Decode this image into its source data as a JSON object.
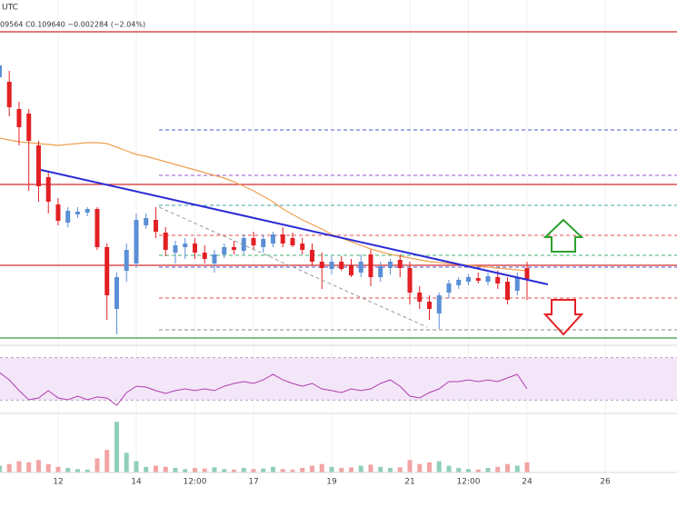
{
  "chart_data": {
    "type": "candlestick",
    "timezone": "UTC",
    "header": "09564 C0.109640 −0.002284 (−2.04%)",
    "up_color": "#5b8fd6",
    "down_color": "#e32024",
    "xlim": [
      -35.7,
      380.1
    ],
    "ylim": [
      0.106,
      0.125
    ],
    "xticks": [
      {
        "value": 0,
        "label": "12"
      },
      {
        "value": 48,
        "label": "14"
      },
      {
        "value": 84,
        "label": "12:00"
      },
      {
        "value": 120,
        "label": "17"
      },
      {
        "value": 168,
        "label": "19"
      },
      {
        "value": 216,
        "label": "21"
      },
      {
        "value": 252,
        "label": "12:00"
      },
      {
        "value": 288,
        "label": "24"
      },
      {
        "value": 336,
        "label": "26"
      }
    ],
    "x": [
      -36,
      -30,
      -24,
      -18,
      -12,
      -6,
      0,
      6,
      12,
      18,
      24,
      30,
      36,
      42,
      48,
      54,
      60,
      66,
      72,
      78,
      84,
      90,
      96,
      102,
      108,
      114,
      120,
      126,
      132,
      138,
      144,
      150,
      156,
      162,
      168,
      174,
      180,
      186,
      192,
      198,
      204,
      210,
      216,
      222,
      228,
      234,
      240,
      246,
      252,
      258,
      264,
      270,
      276,
      282,
      288
    ],
    "open": [
      0.12075,
      0.1205,
      0.119,
      0.11875,
      0.117,
      0.11525,
      0.11375,
      0.11275,
      0.1132,
      0.1133,
      0.1135,
      0.1114,
      0.108,
      0.1101,
      0.1105,
      0.1126,
      0.1129,
      0.1122,
      0.1111,
      0.1114,
      0.1116,
      0.1111,
      0.1105,
      0.111,
      0.1114,
      0.1112,
      0.1119,
      0.1114,
      0.1116,
      0.1121,
      0.1119,
      0.1116,
      0.11125,
      0.1106,
      0.1102,
      0.1106,
      0.1104,
      0.11,
      0.111,
      0.10975,
      0.11025,
      0.1107,
      0.11025,
      0.1089,
      0.1084,
      0.10775,
      0.1089,
      0.1093,
      0.1095,
      0.1097,
      0.1095,
      0.10975,
      0.1095,
      0.109,
      0.11025
    ],
    "high": [
      0.1216,
      0.1211,
      0.1194,
      0.119,
      0.11725,
      0.1156,
      0.1141,
      0.1136,
      0.1136,
      0.1136,
      0.1136,
      0.1116,
      0.11,
      0.1116,
      0.11325,
      0.11325,
      0.1136,
      0.1125,
      0.11175,
      0.1119,
      0.1119,
      0.1115,
      0.11125,
      0.1116,
      0.11175,
      0.1121,
      0.11225,
      0.1121,
      0.11225,
      0.1125,
      0.1122,
      0.1119,
      0.1116,
      0.1111,
      0.1109,
      0.1109,
      0.11075,
      0.111,
      0.11125,
      0.1106,
      0.11075,
      0.111,
      0.1106,
      0.10925,
      0.10875,
      0.1089,
      0.1096,
      0.10975,
      0.1099,
      0.11,
      0.11,
      0.1101,
      0.10975,
      0.11,
      0.1106
    ],
    "low": [
      0.1205,
      0.1186,
      0.117,
      0.1145,
      0.1139,
      0.11325,
      0.1126,
      0.1125,
      0.113,
      0.1131,
      0.11125,
      0.1074,
      0.1066,
      0.1095,
      0.11025,
      0.1124,
      0.1119,
      0.1109,
      0.1105,
      0.11075,
      0.11075,
      0.1105,
      0.11,
      0.1108,
      0.111,
      0.111,
      0.11125,
      0.1111,
      0.1114,
      0.1114,
      0.1114,
      0.111,
      0.1104,
      0.1091,
      0.1099,
      0.1101,
      0.10975,
      0.10975,
      0.10925,
      0.1095,
      0.1099,
      0.10975,
      0.10825,
      0.108,
      0.1074,
      0.1069,
      0.1086,
      0.1091,
      0.1093,
      0.1094,
      0.1093,
      0.1091,
      0.10825,
      0.10875,
      0.1085
    ],
    "close": [
      0.1214,
      0.1191,
      0.118,
      0.11725,
      0.11475,
      0.1139,
      0.11285,
      0.1134,
      0.11335,
      0.1135,
      0.1114,
      0.10875,
      0.10975,
      0.11125,
      0.1129,
      0.113,
      0.11225,
      0.11125,
      0.1115,
      0.1116,
      0.1111,
      0.11075,
      0.111,
      0.1114,
      0.11125,
      0.1119,
      0.1115,
      0.11185,
      0.1121,
      0.1116,
      0.1115,
      0.11125,
      0.1106,
      0.11025,
      0.1106,
      0.1102,
      0.10985,
      0.1106,
      0.10975,
      0.11035,
      0.1106,
      0.11025,
      0.1089,
      0.1084,
      0.108,
      0.10875,
      0.1094,
      0.1096,
      0.10975,
      0.10955,
      0.1098,
      0.1094,
      0.1085,
      0.10975,
      0.10965
    ],
    "ma": {
      "color": "#f0a050",
      "values": [
        0.1174,
        0.1173,
        0.1172,
        0.11715,
        0.1171,
        0.11705,
        0.117,
        0.11705,
        0.1171,
        0.11715,
        0.11715,
        0.1171,
        0.1169,
        0.1167,
        0.1165,
        0.1164,
        0.11625,
        0.1161,
        0.11595,
        0.1158,
        0.11565,
        0.1155,
        0.11535,
        0.1152,
        0.115,
        0.11475,
        0.1145,
        0.1142,
        0.1139,
        0.1135,
        0.1132,
        0.1129,
        0.11265,
        0.1124,
        0.1121,
        0.1119,
        0.1117,
        0.1115,
        0.1113,
        0.11115,
        0.111,
        0.1109,
        0.1108,
        0.1107,
        0.1106,
        0.11055,
        0.1105,
        0.11045,
        0.1104,
        0.11035,
        0.1103,
        0.11025,
        0.1102,
        0.11015,
        0.1101
      ]
    },
    "levels": [
      {
        "value": 0.12325,
        "color": "#d42a2a",
        "dash": false
      },
      {
        "value": 0.11485,
        "color": "#d42a2a",
        "dash": false
      },
      {
        "value": 0.1104,
        "color": "#d42a2a",
        "dash": false
      },
      {
        "value": 0.1064,
        "color": "#3a9a3a",
        "dash": false
      },
      {
        "value": 0.11785,
        "color": "#4c5bd4",
        "dash": true
      },
      {
        "value": 0.11535,
        "color": "#9c4fd6",
        "dash": true
      },
      {
        "value": 0.1137,
        "color": "#3fa5a5",
        "dash": true
      },
      {
        "value": 0.11205,
        "color": "#e35050",
        "dash": true
      },
      {
        "value": 0.11095,
        "color": "#3cb371",
        "dash": true
      },
      {
        "value": 0.1103,
        "color": "#4c5bd4",
        "dash": true
      },
      {
        "value": 0.1086,
        "color": "#e35050",
        "dash": true
      },
      {
        "value": 0.10685,
        "color": "#888888",
        "dash": true
      }
    ],
    "trendlines": [
      {
        "x": [
          -10.6,
          300.8
        ],
        "y": [
          0.11565,
          0.10935
        ],
        "color": "#2b2bd6",
        "dash": false
      },
      {
        "x": [
          62,
          226.6
        ],
        "y": [
          0.1136,
          0.107
        ],
        "color": "#9a9a9a",
        "dash": true
      }
    ],
    "rsi": {
      "color": "#b03cb0",
      "ylim": [
        20,
        80
      ],
      "band": [
        30,
        70
      ],
      "values": [
        56,
        49.1,
        38.9,
        30.3,
        32,
        38.9,
        32,
        30.3,
        33.7,
        30.3,
        32.9,
        32,
        25.1,
        37.1,
        43.1,
        42.3,
        38.9,
        36.3,
        38.9,
        40.6,
        38.9,
        40.6,
        38.9,
        43.1,
        45.7,
        47.4,
        45.7,
        49.1,
        54.3,
        49.1,
        45.7,
        43.1,
        45.7,
        40.6,
        38.9,
        37.1,
        40.6,
        38.9,
        40.6,
        45.7,
        49.1,
        43.1,
        33.7,
        32,
        37.1,
        40.6,
        47.4,
        47.4,
        49.1,
        47.4,
        49.1,
        47.4,
        50.9,
        54.3,
        40.6
      ]
    },
    "volume": {
      "ylim": [
        0,
        100
      ],
      "up_color": "#8fcfb8",
      "down_color": "#f2a3a3",
      "values": [
        12,
        15,
        20,
        18,
        22,
        15,
        10,
        8,
        6,
        5,
        25,
        40,
        90,
        35,
        20,
        10,
        12,
        10,
        8,
        6,
        8,
        7,
        9,
        6,
        5,
        8,
        6,
        7,
        10,
        6,
        5,
        8,
        12,
        15,
        10,
        8,
        9,
        12,
        14,
        10,
        8,
        9,
        22,
        15,
        18,
        20,
        12,
        8,
        6,
        5,
        8,
        10,
        15,
        12,
        18
      ]
    }
  }
}
